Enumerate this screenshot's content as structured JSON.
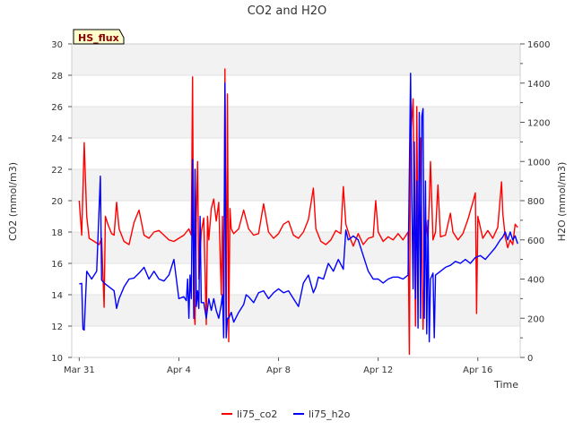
{
  "chart_data": {
    "type": "line",
    "title": "CO2 and H2O",
    "site_label": "HS_flux",
    "xlabel": "Time",
    "ylabel_left": "CO2 (mmol/m3)",
    "ylabel_right": "H2O (mmol/m3)",
    "x_unit": "days since Mar 31",
    "xlim": [
      -0.3,
      17.7
    ],
    "ylim_left": [
      10,
      30
    ],
    "ylim_right": [
      0,
      1600
    ],
    "x_ticks": [
      {
        "value": 0,
        "label": "Mar 31"
      },
      {
        "value": 4,
        "label": "Apr 4"
      },
      {
        "value": 8,
        "label": "Apr 8"
      },
      {
        "value": 12,
        "label": "Apr 12"
      },
      {
        "value": 16,
        "label": "Apr 16"
      }
    ],
    "y_ticks_left": [
      10,
      12,
      14,
      16,
      18,
      20,
      22,
      24,
      26,
      28,
      30
    ],
    "y_ticks_right": [
      0,
      200,
      400,
      600,
      800,
      1000,
      1200,
      1400,
      1600
    ],
    "legend": [
      {
        "name": "li75_co2",
        "color": "#ff0000"
      },
      {
        "name": "li75_h2o",
        "color": "#0000ff"
      }
    ],
    "series": [
      {
        "name": "li75_co2",
        "axis": "left",
        "color": "#ff0000",
        "points": [
          [
            0,
            20.0
          ],
          [
            0.1,
            17.8
          ],
          [
            0.2,
            23.7
          ],
          [
            0.3,
            19.0
          ],
          [
            0.4,
            17.6
          ],
          [
            0.6,
            17.4
          ],
          [
            0.8,
            17.2
          ],
          [
            0.9,
            17.6
          ],
          [
            1.0,
            13.2
          ],
          [
            1.05,
            19.0
          ],
          [
            1.15,
            18.5
          ],
          [
            1.3,
            17.9
          ],
          [
            1.4,
            17.8
          ],
          [
            1.5,
            19.9
          ],
          [
            1.6,
            18.2
          ],
          [
            1.8,
            17.4
          ],
          [
            2.0,
            17.2
          ],
          [
            2.2,
            18.6
          ],
          [
            2.4,
            19.4
          ],
          [
            2.6,
            17.8
          ],
          [
            2.8,
            17.6
          ],
          [
            3.0,
            18.0
          ],
          [
            3.2,
            18.1
          ],
          [
            3.4,
            17.8
          ],
          [
            3.6,
            17.5
          ],
          [
            3.8,
            17.4
          ],
          [
            4.0,
            17.6
          ],
          [
            4.2,
            17.8
          ],
          [
            4.4,
            18.2
          ],
          [
            4.5,
            17.8
          ],
          [
            4.55,
            27.9
          ],
          [
            4.6,
            13.0
          ],
          [
            4.65,
            12.1
          ],
          [
            4.7,
            19.0
          ],
          [
            4.75,
            22.5
          ],
          [
            4.8,
            15.0
          ],
          [
            4.9,
            18.0
          ],
          [
            5.0,
            18.9
          ],
          [
            5.1,
            12.1
          ],
          [
            5.15,
            19.0
          ],
          [
            5.2,
            17.5
          ],
          [
            5.3,
            19.5
          ],
          [
            5.4,
            20.1
          ],
          [
            5.5,
            18.7
          ],
          [
            5.6,
            19.9
          ],
          [
            5.7,
            14.0
          ],
          [
            5.75,
            19.0
          ],
          [
            5.8,
            11.5
          ],
          [
            5.85,
            28.4
          ],
          [
            5.9,
            12.0
          ],
          [
            5.95,
            26.8
          ],
          [
            6.0,
            11.0
          ],
          [
            6.05,
            19.5
          ],
          [
            6.1,
            18.2
          ],
          [
            6.2,
            17.9
          ],
          [
            6.4,
            18.2
          ],
          [
            6.6,
            19.4
          ],
          [
            6.7,
            18.8
          ],
          [
            6.8,
            18.2
          ],
          [
            7.0,
            17.8
          ],
          [
            7.2,
            17.9
          ],
          [
            7.4,
            19.8
          ],
          [
            7.6,
            18.0
          ],
          [
            7.8,
            17.6
          ],
          [
            8.0,
            17.9
          ],
          [
            8.2,
            18.5
          ],
          [
            8.4,
            18.7
          ],
          [
            8.6,
            17.8
          ],
          [
            8.8,
            17.6
          ],
          [
            9.0,
            18.0
          ],
          [
            9.2,
            18.8
          ],
          [
            9.4,
            20.8
          ],
          [
            9.5,
            18.2
          ],
          [
            9.7,
            17.4
          ],
          [
            9.9,
            17.2
          ],
          [
            10.1,
            17.5
          ],
          [
            10.3,
            18.1
          ],
          [
            10.5,
            17.9
          ],
          [
            10.6,
            20.9
          ],
          [
            10.7,
            18.5
          ],
          [
            10.9,
            17.5
          ],
          [
            11.0,
            17.1
          ],
          [
            11.2,
            17.9
          ],
          [
            11.4,
            17.2
          ],
          [
            11.6,
            17.6
          ],
          [
            11.8,
            17.7
          ],
          [
            11.9,
            20.0
          ],
          [
            12.0,
            18.0
          ],
          [
            12.2,
            17.4
          ],
          [
            12.4,
            17.7
          ],
          [
            12.6,
            17.5
          ],
          [
            12.8,
            17.9
          ],
          [
            13.0,
            17.5
          ],
          [
            13.2,
            18.0
          ],
          [
            13.25,
            10.2
          ],
          [
            13.3,
            24.0
          ],
          [
            13.4,
            26.5
          ],
          [
            13.5,
            12.0
          ],
          [
            13.55,
            26.0
          ],
          [
            13.6,
            16.0
          ],
          [
            13.7,
            24.0
          ],
          [
            13.8,
            11.8
          ],
          [
            13.9,
            19.0
          ],
          [
            14.0,
            17.5
          ],
          [
            14.1,
            22.5
          ],
          [
            14.2,
            17.5
          ],
          [
            14.3,
            18.0
          ],
          [
            14.4,
            21.0
          ],
          [
            14.5,
            17.7
          ],
          [
            14.7,
            17.8
          ],
          [
            14.9,
            19.2
          ],
          [
            15.0,
            18.0
          ],
          [
            15.2,
            17.5
          ],
          [
            15.4,
            17.9
          ],
          [
            15.6,
            18.8
          ],
          [
            15.8,
            19.9
          ],
          [
            15.9,
            20.5
          ],
          [
            15.95,
            12.8
          ],
          [
            16.0,
            19.0
          ],
          [
            16.2,
            17.6
          ],
          [
            16.4,
            18.1
          ],
          [
            16.6,
            17.6
          ],
          [
            16.8,
            18.3
          ],
          [
            16.95,
            21.2
          ],
          [
            17.0,
            19.2
          ],
          [
            17.1,
            17.7
          ],
          [
            17.2,
            17.0
          ],
          [
            17.3,
            17.5
          ],
          [
            17.4,
            17.2
          ],
          [
            17.5,
            18.5
          ],
          [
            17.6,
            18.3
          ]
        ]
      },
      {
        "name": "li75_h2o",
        "axis": "right",
        "color": "#0000ff",
        "points": [
          [
            0,
            375
          ],
          [
            0.1,
            378
          ],
          [
            0.15,
            145
          ],
          [
            0.2,
            140
          ],
          [
            0.3,
            440
          ],
          [
            0.5,
            400
          ],
          [
            0.7,
            440
          ],
          [
            0.85,
            925
          ],
          [
            0.9,
            395
          ],
          [
            1.0,
            380
          ],
          [
            1.2,
            360
          ],
          [
            1.4,
            340
          ],
          [
            1.5,
            250
          ],
          [
            1.6,
            300
          ],
          [
            1.8,
            360
          ],
          [
            2.0,
            400
          ],
          [
            2.2,
            405
          ],
          [
            2.4,
            430
          ],
          [
            2.6,
            460
          ],
          [
            2.8,
            400
          ],
          [
            3.0,
            440
          ],
          [
            3.2,
            400
          ],
          [
            3.4,
            390
          ],
          [
            3.6,
            420
          ],
          [
            3.8,
            500
          ],
          [
            4.0,
            300
          ],
          [
            4.2,
            310
          ],
          [
            4.3,
            290
          ],
          [
            4.35,
            400
          ],
          [
            4.4,
            200
          ],
          [
            4.45,
            420
          ],
          [
            4.5,
            300
          ],
          [
            4.55,
            1010
          ],
          [
            4.6,
            200
          ],
          [
            4.65,
            960
          ],
          [
            4.7,
            260
          ],
          [
            4.75,
            340
          ],
          [
            4.8,
            250
          ],
          [
            4.85,
            720
          ],
          [
            4.9,
            280
          ],
          [
            5.0,
            280
          ],
          [
            5.1,
            200
          ],
          [
            5.2,
            300
          ],
          [
            5.3,
            240
          ],
          [
            5.4,
            300
          ],
          [
            5.5,
            240
          ],
          [
            5.6,
            200
          ],
          [
            5.7,
            270
          ],
          [
            5.75,
            320
          ],
          [
            5.8,
            100
          ],
          [
            5.85,
            1400
          ],
          [
            5.9,
            100
          ],
          [
            5.95,
            200
          ],
          [
            6.0,
            200
          ],
          [
            6.1,
            230
          ],
          [
            6.2,
            180
          ],
          [
            6.4,
            230
          ],
          [
            6.6,
            270
          ],
          [
            6.7,
            320
          ],
          [
            6.8,
            310
          ],
          [
            7.0,
            280
          ],
          [
            7.2,
            330
          ],
          [
            7.4,
            340
          ],
          [
            7.6,
            300
          ],
          [
            7.8,
            330
          ],
          [
            8.0,
            350
          ],
          [
            8.2,
            330
          ],
          [
            8.4,
            340
          ],
          [
            8.6,
            300
          ],
          [
            8.8,
            260
          ],
          [
            9.0,
            380
          ],
          [
            9.2,
            420
          ],
          [
            9.4,
            330
          ],
          [
            9.5,
            360
          ],
          [
            9.6,
            410
          ],
          [
            9.8,
            400
          ],
          [
            10.0,
            480
          ],
          [
            10.2,
            440
          ],
          [
            10.4,
            500
          ],
          [
            10.6,
            450
          ],
          [
            10.7,
            650
          ],
          [
            10.8,
            600
          ],
          [
            11.0,
            620
          ],
          [
            11.2,
            600
          ],
          [
            11.4,
            520
          ],
          [
            11.6,
            440
          ],
          [
            11.8,
            400
          ],
          [
            12.0,
            400
          ],
          [
            12.2,
            380
          ],
          [
            12.4,
            400
          ],
          [
            12.6,
            410
          ],
          [
            12.8,
            410
          ],
          [
            13.0,
            400
          ],
          [
            13.2,
            420
          ],
          [
            13.3,
            1450
          ],
          [
            13.35,
            800
          ],
          [
            13.4,
            350
          ],
          [
            13.45,
            1100
          ],
          [
            13.5,
            300
          ],
          [
            13.55,
            900
          ],
          [
            13.6,
            150
          ],
          [
            13.65,
            1250
          ],
          [
            13.7,
            200
          ],
          [
            13.75,
            1230
          ],
          [
            13.8,
            1270
          ],
          [
            13.85,
            200
          ],
          [
            13.9,
            900
          ],
          [
            13.95,
            120
          ],
          [
            14.0,
            700
          ],
          [
            14.05,
            80
          ],
          [
            14.1,
            400
          ],
          [
            14.2,
            430
          ],
          [
            14.25,
            100
          ],
          [
            14.3,
            420
          ],
          [
            14.5,
            440
          ],
          [
            14.7,
            460
          ],
          [
            14.9,
            470
          ],
          [
            15.1,
            490
          ],
          [
            15.3,
            480
          ],
          [
            15.5,
            500
          ],
          [
            15.7,
            480
          ],
          [
            15.9,
            510
          ],
          [
            16.1,
            520
          ],
          [
            16.3,
            500
          ],
          [
            16.5,
            530
          ],
          [
            16.7,
            560
          ],
          [
            16.9,
            600
          ],
          [
            17.0,
            615
          ],
          [
            17.1,
            640
          ],
          [
            17.2,
            600
          ],
          [
            17.3,
            640
          ],
          [
            17.4,
            600
          ],
          [
            17.5,
            620
          ],
          [
            17.6,
            580
          ]
        ]
      }
    ]
  }
}
